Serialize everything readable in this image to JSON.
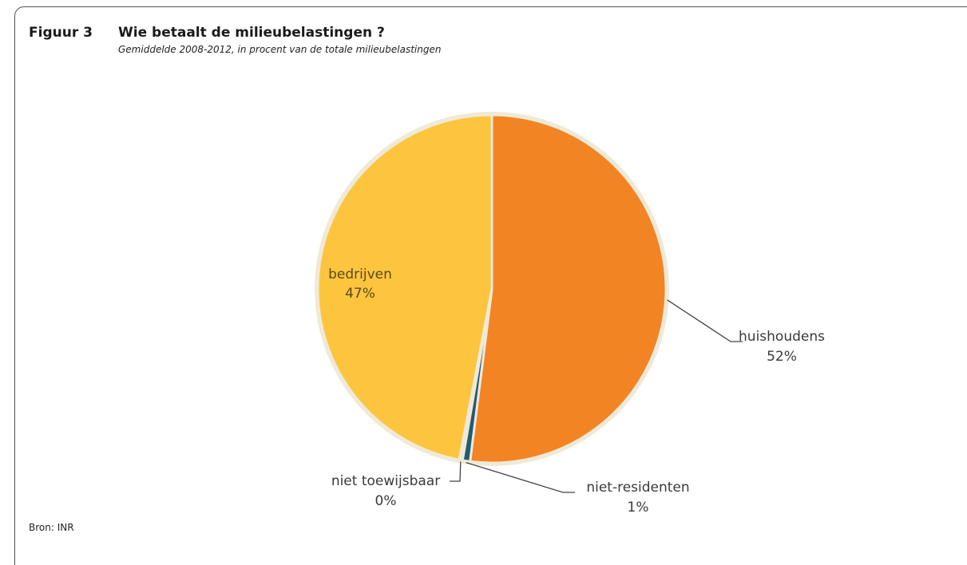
{
  "figure": {
    "number": "Figuur 3",
    "title": "Wie betaalt de milieubelastingen ?",
    "subtitle": "Gemiddelde 2008-2012, in procent van de totale milieubelastingen",
    "source": "Bron: INR"
  },
  "chart_data": {
    "type": "pie",
    "slices": [
      {
        "name": "huishoudens",
        "label": "52%",
        "value": 52.0,
        "color": "#F28424"
      },
      {
        "name": "niet-residenten",
        "label": "1%",
        "value": 0.7,
        "color": "#1F5C78"
      },
      {
        "name": "niet toewijsbaar",
        "label": "0%",
        "value": 0.3,
        "color": "#EFE9D8"
      },
      {
        "name": "bedrijven",
        "label": "47%",
        "value": 47.0,
        "color": "#FDC53D"
      }
    ],
    "legend": "none",
    "labels": "outside with leader lines, except bedrijven inside"
  }
}
